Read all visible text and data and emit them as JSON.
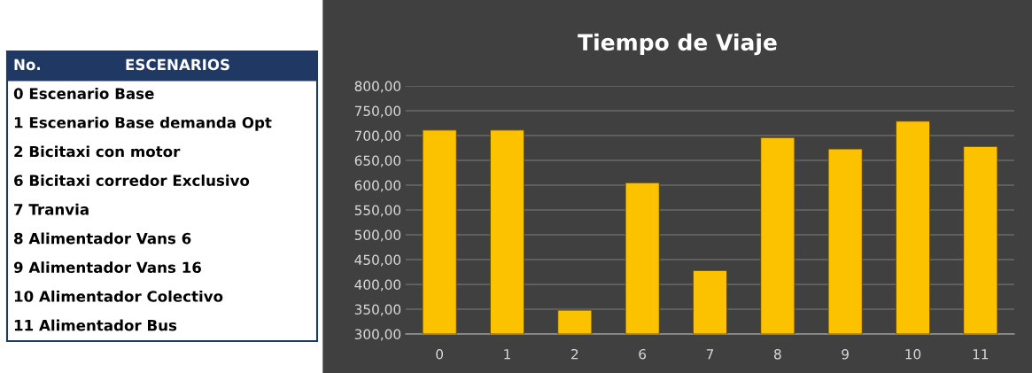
{
  "chart_data": [
    {
      "type": "other",
      "annotations": [
        "No.",
        "ESCENARIOS",
        "0 Escenario Base",
        "1 Escenario Base demanda Opt",
        "2 Bicitaxi con motor",
        "6 Bicitaxi corredor Exclusivo",
        "7 Tranvia",
        "8 Alimentador Vans 6",
        "9 Alimentador Vans 16",
        "10 Alimentador Colectivo",
        "11 Alimentador Bus"
      ]
    },
    {
      "type": "bar",
      "title": "Tiempo de Viaje",
      "categories": [
        "0",
        "1",
        "2",
        "6",
        "7",
        "8",
        "9",
        "10",
        "11"
      ],
      "values": [
        711,
        711,
        348,
        605,
        428,
        696,
        673,
        729,
        678
      ],
      "color": "#fcc200",
      "ylim": [
        300,
        800
      ],
      "yticks": [
        {
          "value": 300,
          "label": "300,00"
        },
        {
          "value": 350,
          "label": "350,00"
        },
        {
          "value": 400,
          "label": "400,00"
        },
        {
          "value": 450,
          "label": "450,00"
        },
        {
          "value": 500,
          "label": "500,00"
        },
        {
          "value": 550,
          "label": "550,00"
        },
        {
          "value": 600,
          "label": "600,00"
        },
        {
          "value": 650,
          "label": "650,00"
        },
        {
          "value": 700,
          "label": "700,00"
        },
        {
          "value": 750,
          "label": "750,00"
        },
        {
          "value": 800,
          "label": "800,00"
        }
      ],
      "grid": "y",
      "legend": false
    }
  ]
}
